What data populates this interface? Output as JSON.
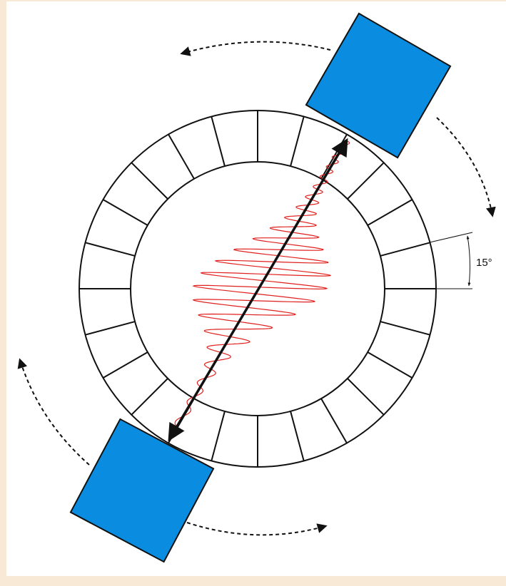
{
  "diagram": {
    "angle_label": "15°"
  }
}
